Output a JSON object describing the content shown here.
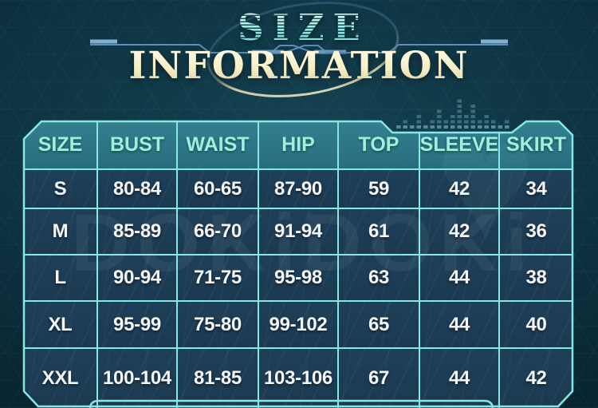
{
  "title": {
    "line1": "SIZE",
    "line2": "INFORMATION"
  },
  "watermark": {
    "text": "DOKiDOKi",
    "heart_icon": "♥"
  },
  "chart_data": {
    "type": "table",
    "title": "SIZE INFORMATION",
    "columns": [
      "SIZE",
      "BUST",
      "WAIST",
      "HIP",
      "TOP",
      "SLEEVE",
      "SKIRT"
    ],
    "rows": [
      [
        "S",
        "80-84",
        "60-65",
        "87-90",
        "59",
        "42",
        "34"
      ],
      [
        "M",
        "85-89",
        "66-70",
        "91-94",
        "61",
        "42",
        "36"
      ],
      [
        "L",
        "90-94",
        "71-75",
        "95-98",
        "63",
        "44",
        "38"
      ],
      [
        "XL",
        "95-99",
        "75-80",
        "99-102",
        "65",
        "44",
        "40"
      ],
      [
        "XXL",
        "100-104",
        "81-85",
        "103-106",
        "67",
        "44",
        "42"
      ]
    ]
  },
  "colors": {
    "background": "#0e3443",
    "table_border": "#86e7e3",
    "header_bg": "#2c7384",
    "header_text": "#9df0d9",
    "cell_bg": "#1d3d56",
    "cell_text": "#f5f5f5",
    "title_size_fill": "#9feee8",
    "title_information_fill": "#f7f2d0",
    "circuit_line": "#5e8fb8",
    "orbit_top": "#2b5871",
    "orbit_bottom": "#efe8bd",
    "equalizer": "#5fa0af"
  },
  "decor": {
    "equalizer_heights": [
      1,
      2,
      1,
      3,
      1,
      2,
      4,
      2,
      3,
      6,
      3,
      5,
      2,
      3,
      2,
      1,
      2
    ]
  }
}
